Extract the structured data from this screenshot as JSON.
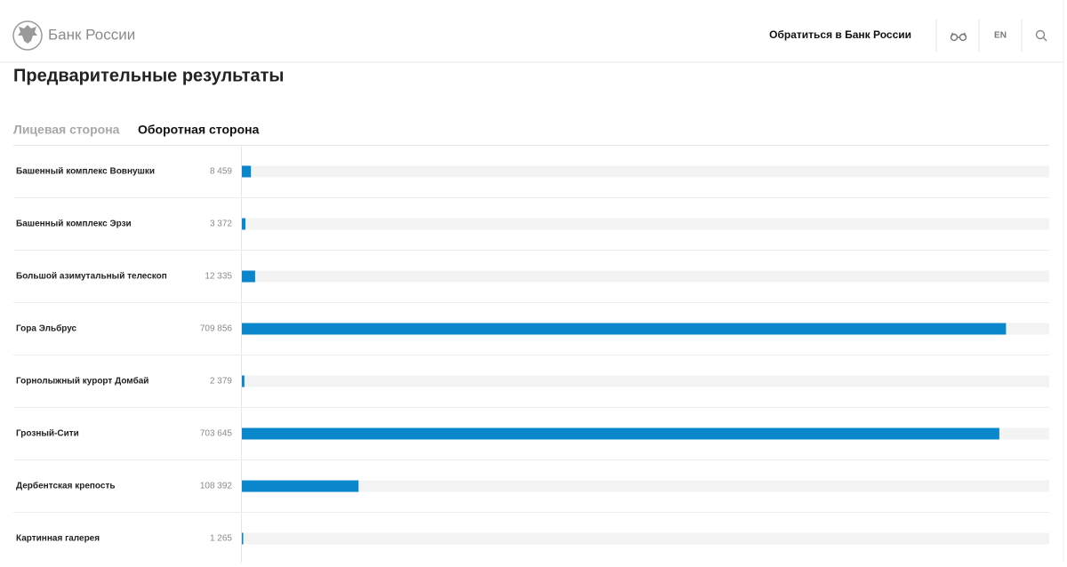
{
  "header": {
    "brand": "Банк России",
    "contact": "Обратиться в Банк России",
    "lang": "EN"
  },
  "page_title": "Предварительные результаты",
  "tabs": [
    "Лицевая сторона",
    "Оборотная сторона"
  ],
  "chart_data": {
    "type": "bar",
    "orientation": "horizontal",
    "color": "#0a87cc",
    "categories": [
      "Башенный комплекс Вовнушки",
      "Башенный комплекс Эрзи",
      "Большой азимутальный телескоп",
      "Гора Эльбрус",
      "Горнолыжный курорт Домбай",
      "Грозный-Сити",
      "Дербентская крепость",
      "Картинная галерея"
    ],
    "values": [
      8459,
      3372,
      12335,
      709856,
      2379,
      703645,
      108392,
      1265
    ],
    "value_labels": [
      "8 459",
      "3 372",
      "12 335",
      "709 856",
      "2 379",
      "703 645",
      "108 392",
      "1 265"
    ],
    "xlim": [
      0,
      750000
    ]
  }
}
